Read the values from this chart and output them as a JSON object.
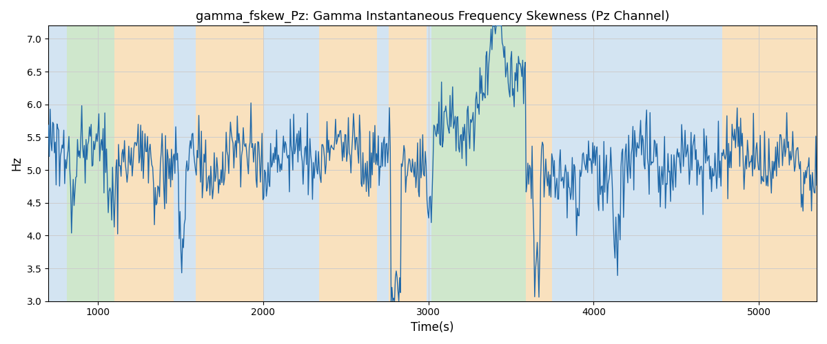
{
  "title": "gamma_fskew_Pz: Gamma Instantaneous Frequency Skewness (Pz Channel)",
  "xlabel": "Time(s)",
  "ylabel": "Hz",
  "xlim": [
    700,
    5350
  ],
  "ylim": [
    3.0,
    7.2
  ],
  "yticks": [
    3.0,
    3.5,
    4.0,
    4.5,
    5.0,
    5.5,
    6.0,
    6.5,
    7.0
  ],
  "xticks": [
    1000,
    2000,
    3000,
    4000,
    5000
  ],
  "bg_bands": [
    {
      "xmin": 700,
      "xmax": 810,
      "color": "#b0cfe8",
      "alpha": 0.55
    },
    {
      "xmin": 810,
      "xmax": 1100,
      "color": "#a8d5a2",
      "alpha": 0.55
    },
    {
      "xmin": 1100,
      "xmax": 1460,
      "color": "#f5c98a",
      "alpha": 0.55
    },
    {
      "xmin": 1460,
      "xmax": 1590,
      "color": "#b0cfe8",
      "alpha": 0.55
    },
    {
      "xmin": 1590,
      "xmax": 2000,
      "color": "#f5c98a",
      "alpha": 0.55
    },
    {
      "xmin": 2000,
      "xmax": 2340,
      "color": "#b0cfe8",
      "alpha": 0.55
    },
    {
      "xmin": 2340,
      "xmax": 2690,
      "color": "#f5c98a",
      "alpha": 0.55
    },
    {
      "xmin": 2690,
      "xmax": 2760,
      "color": "#b0cfe8",
      "alpha": 0.55
    },
    {
      "xmin": 2760,
      "xmax": 2990,
      "color": "#f5c98a",
      "alpha": 0.55
    },
    {
      "xmin": 2990,
      "xmax": 3020,
      "color": "#b0cfe8",
      "alpha": 0.55
    },
    {
      "xmin": 3020,
      "xmax": 3590,
      "color": "#a8d5a2",
      "alpha": 0.55
    },
    {
      "xmin": 3590,
      "xmax": 3750,
      "color": "#f5c98a",
      "alpha": 0.55
    },
    {
      "xmin": 3750,
      "xmax": 4670,
      "color": "#b0cfe8",
      "alpha": 0.55
    },
    {
      "xmin": 4670,
      "xmax": 4780,
      "color": "#b0cfe8",
      "alpha": 0.55
    },
    {
      "xmin": 4780,
      "xmax": 5350,
      "color": "#f5c98a",
      "alpha": 0.55
    }
  ],
  "line_color": "#2068a8",
  "line_width": 1.0,
  "grid_color": "#cccccc",
  "seed": 1234,
  "n_points": 900
}
